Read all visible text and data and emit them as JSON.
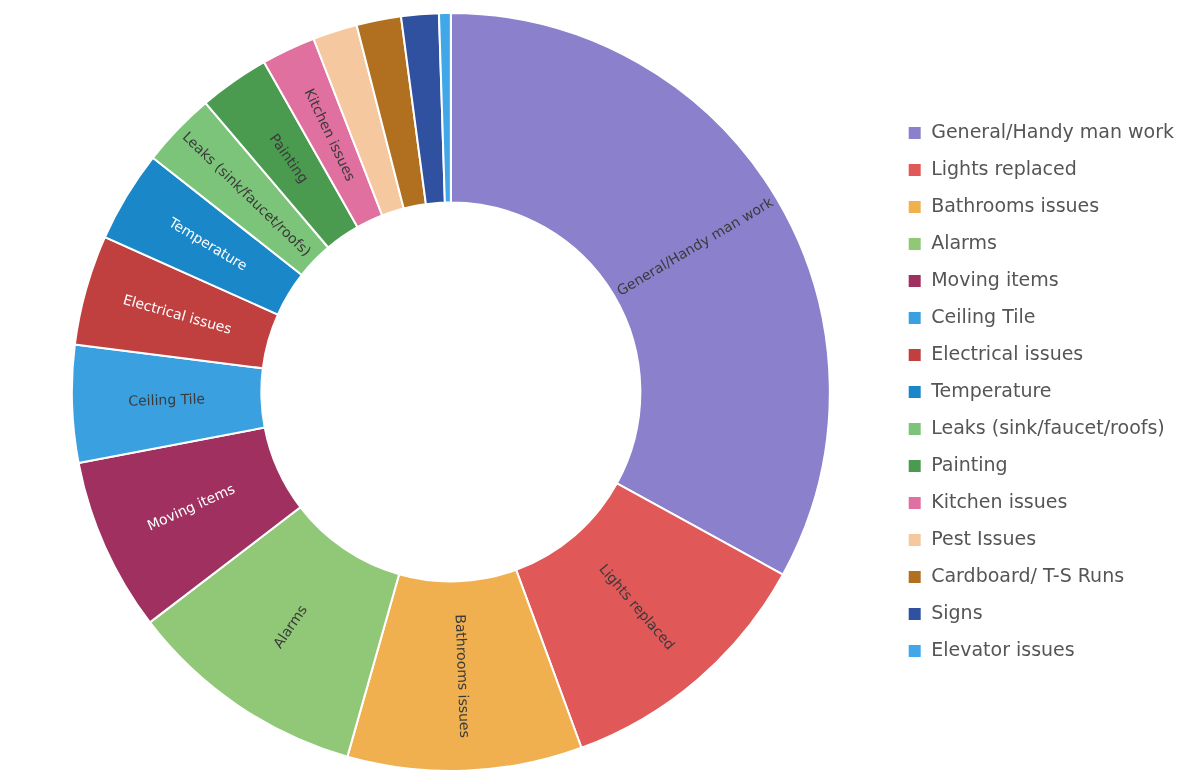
{
  "chart_data": {
    "type": "donut",
    "categories": [
      "General/Handy man work",
      "Lights replaced",
      "Bathrooms issues",
      "Alarms",
      "Moving items",
      "Ceiling Tile",
      "Electrical issues",
      "Temperature",
      "Leaks (sink/faucet/roofs)",
      "Painting",
      "Kitchen issues",
      "Pest Issues",
      "Cardboard/ T-S Runs",
      "Signs",
      "Elevator issues"
    ],
    "values": [
      33,
      11.4,
      10,
      10.2,
      7.4,
      5,
      4.7,
      3.9,
      3.2,
      3,
      2.3,
      1.9,
      1.9,
      1.6,
      0.5
    ],
    "colors": [
      "#8a80cc",
      "#e05858",
      "#f0b050",
      "#90c878",
      "#a03060",
      "#3aa0e0",
      "#c04040",
      "#1a88c8",
      "#7cc47a",
      "#4a9a50",
      "#e070a0",
      "#f5c8a0",
      "#b07020",
      "#3050a0",
      "#40a8e8"
    ],
    "legend": "right"
  }
}
